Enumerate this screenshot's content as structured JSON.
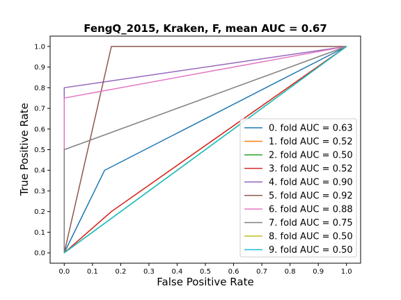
{
  "chart_data": {
    "type": "line",
    "title": "FengQ_2015, Kraken, F, mean AUC =  0.67",
    "xlabel": "False Positive Rate",
    "ylabel": "True Positive Rate",
    "xlim": [
      -0.05,
      1.05
    ],
    "ylim": [
      -0.05,
      1.05
    ],
    "xticks": [
      0.0,
      0.1,
      0.2,
      0.3,
      0.4,
      0.5,
      0.6,
      0.7,
      0.8,
      0.9,
      1.0
    ],
    "yticks": [
      0.0,
      0.1,
      0.2,
      0.3,
      0.4,
      0.5,
      0.6,
      0.7,
      0.8,
      0.9,
      1.0
    ],
    "xtick_labels": [
      "0.0",
      "0.1",
      "0.2",
      "0.3",
      "0.4",
      "0.5",
      "0.6",
      "0.7",
      "0.8",
      "0.9",
      "1.0"
    ],
    "ytick_labels": [
      "0.0",
      "0.1",
      "0.2",
      "0.3",
      "0.4",
      "0.5",
      "0.6",
      "0.7",
      "0.8",
      "0.9",
      "1.0"
    ],
    "grid": false,
    "legend_position": "lower-right",
    "series": [
      {
        "name": "0. fold AUC = 0.63",
        "color": "#1f77b4",
        "x": [
          0.0,
          0.143,
          1.0
        ],
        "y": [
          0.0,
          0.4,
          1.0
        ]
      },
      {
        "name": "1. fold AUC = 0.52",
        "color": "#ff7f0e",
        "x": [
          0.0,
          0.167,
          1.0
        ],
        "y": [
          0.0,
          0.2,
          1.0
        ]
      },
      {
        "name": "2. fold AUC = 0.50",
        "color": "#2ca02c",
        "x": [
          0.0,
          1.0
        ],
        "y": [
          0.0,
          1.0
        ]
      },
      {
        "name": "3. fold AUC = 0.52",
        "color": "#d62728",
        "x": [
          0.0,
          0.167,
          1.0
        ],
        "y": [
          0.0,
          0.2,
          1.0
        ]
      },
      {
        "name": "4. fold AUC = 0.90",
        "color": "#9467bd",
        "x": [
          0.0,
          0.0,
          1.0
        ],
        "y": [
          0.0,
          0.8,
          1.0
        ]
      },
      {
        "name": "5. fold AUC = 0.92",
        "color": "#8c564b",
        "x": [
          0.0,
          0.167,
          1.0
        ],
        "y": [
          0.0,
          1.0,
          1.0
        ]
      },
      {
        "name": "6. fold AUC = 0.88",
        "color": "#e377c2",
        "x": [
          0.0,
          0.0,
          1.0
        ],
        "y": [
          0.0,
          0.75,
          1.0
        ]
      },
      {
        "name": "7. fold AUC = 0.75",
        "color": "#7f7f7f",
        "x": [
          0.0,
          0.0,
          1.0
        ],
        "y": [
          0.0,
          0.5,
          1.0
        ]
      },
      {
        "name": "8. fold AUC = 0.50",
        "color": "#bcbd22",
        "x": [
          0.0,
          1.0
        ],
        "y": [
          0.0,
          1.0
        ]
      },
      {
        "name": "9. fold AUC = 0.50",
        "color": "#17becf",
        "x": [
          0.0,
          1.0
        ],
        "y": [
          0.0,
          1.0
        ]
      }
    ]
  }
}
